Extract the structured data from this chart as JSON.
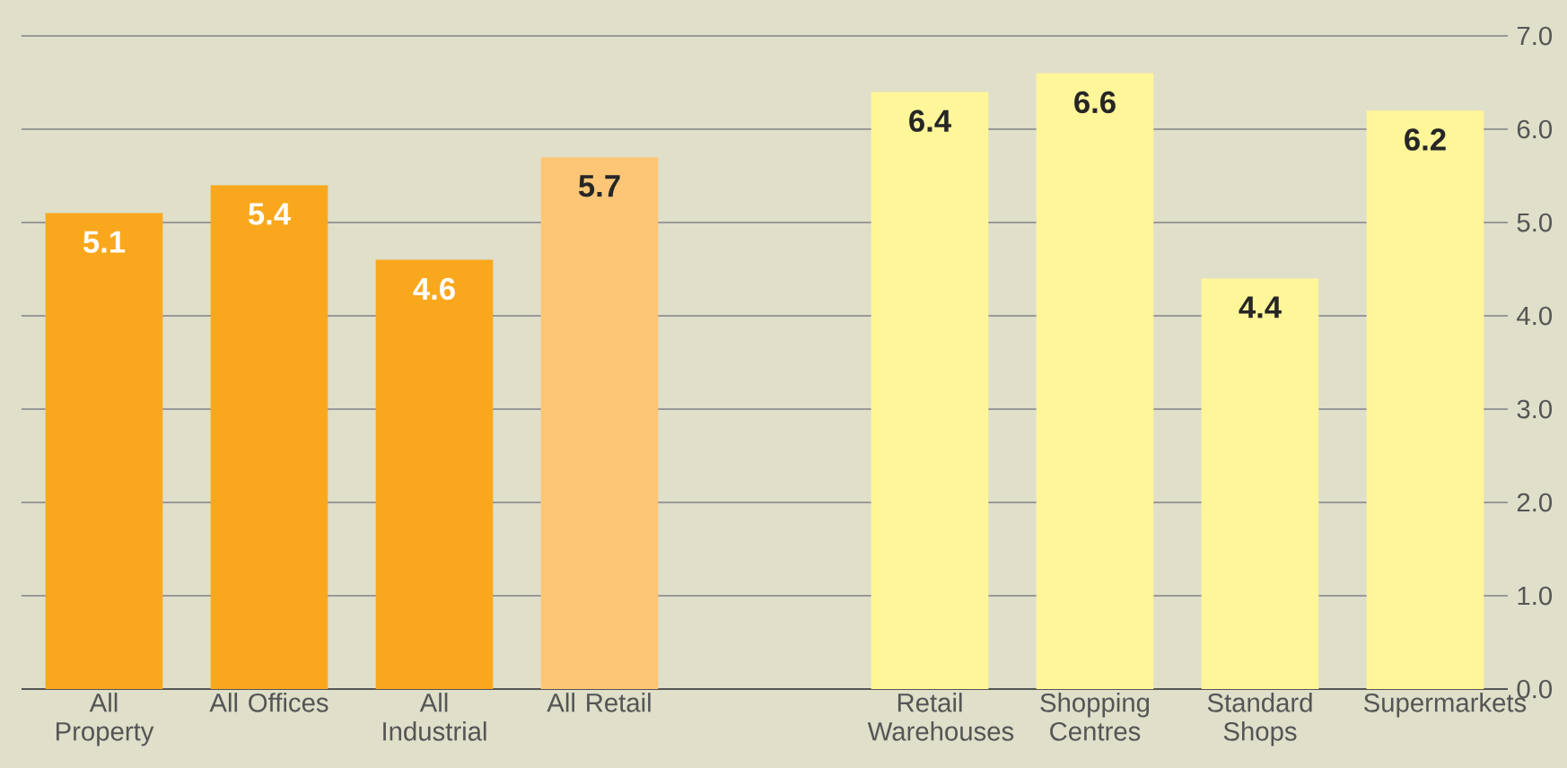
{
  "chart_data": {
    "type": "bar",
    "categories": [
      "All Property",
      "All Offices",
      "All Industrial",
      "All Retail",
      null,
      "Retail Warehouses",
      "Shopping Centres",
      "Standard Shops",
      "Supermarkets"
    ],
    "values": [
      5.1,
      5.4,
      4.6,
      5.7,
      null,
      6.4,
      6.6,
      4.4,
      6.2
    ],
    "colors": [
      "#f9a81e",
      "#f9a81e",
      "#f9a81e",
      "#fdc677",
      "#fff599",
      "#fff599",
      "#fff599",
      "#fff599",
      "#fff599"
    ],
    "ylim": [
      0,
      7
    ],
    "yticks": [
      {
        "value": 0,
        "label": "0.0"
      },
      {
        "value": 1,
        "label": "1.0"
      },
      {
        "value": 2,
        "label": "2.0"
      },
      {
        "value": 3,
        "label": "3.0"
      },
      {
        "value": 4,
        "label": "4.0"
      },
      {
        "value": 5,
        "label": "5.0"
      },
      {
        "value": 6,
        "label": "6.0"
      },
      {
        "value": 7,
        "label": "7.0"
      }
    ],
    "grid": "y",
    "data_labels": true
  }
}
